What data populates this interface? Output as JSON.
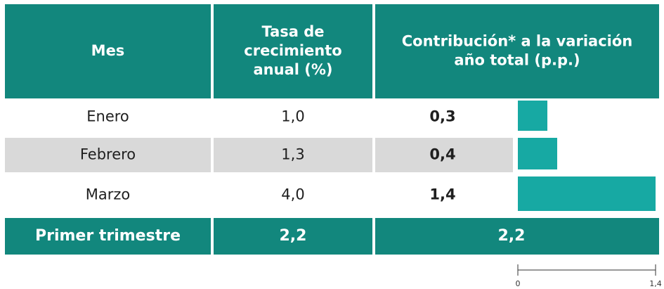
{
  "table": {
    "headers": [
      [
        "Mes"
      ],
      [
        "Tasa de",
        "crecimiento",
        "anual (%)"
      ],
      [
        "Contribución* a la variación",
        "año total (p.p.)"
      ]
    ],
    "rows": [
      {
        "mes": "Enero",
        "tasa": "1,0"
      },
      {
        "mes": "Febrero",
        "tasa": "1,3"
      },
      {
        "mes": "Marzo",
        "tasa": "4,0"
      }
    ],
    "total": {
      "label": "Primer trimestre",
      "tasa": "2,2",
      "contribucion": "2,2"
    }
  },
  "contribution": {
    "values": [
      0.3,
      0.4,
      1.4
    ],
    "value_labels": [
      "0,3",
      "0,4",
      "1,4"
    ],
    "color": "#17a9a3",
    "xlim": [
      0,
      1.4
    ],
    "xticks": [
      0,
      {
        "value": 1.4,
        "label": "1,4"
      }
    ]
  }
}
